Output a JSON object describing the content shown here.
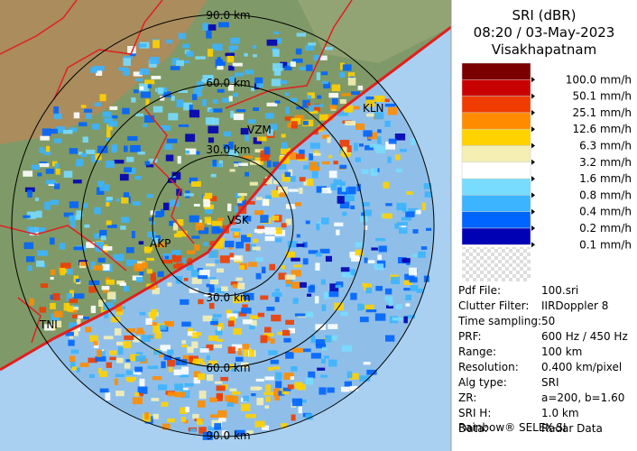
{
  "header": {
    "title": "SRI (dBR)",
    "datetime": "08:20 / 03-May-2023",
    "station": "Visakhapatnam"
  },
  "legend": [
    {
      "label": "100.0 mm/h",
      "color": "#7a0000"
    },
    {
      "label": "50.1 mm/h",
      "color": "#c80000"
    },
    {
      "label": "25.1 mm/h",
      "color": "#f03c00"
    },
    {
      "label": "12.6 mm/h",
      "color": "#ff8c00"
    },
    {
      "label": "6.3 mm/h",
      "color": "#ffd200"
    },
    {
      "label": "3.2 mm/h",
      "color": "#f5efb4"
    },
    {
      "label": "1.6 mm/h",
      "color": "#ffffff"
    },
    {
      "label": "0.8 mm/h",
      "color": "#78dcff"
    },
    {
      "label": "0.4 mm/h",
      "color": "#3cb4ff"
    },
    {
      "label": "0.2 mm/h",
      "color": "#0064ff"
    },
    {
      "label": "0.1 mm/h",
      "color": "#0000b4"
    }
  ],
  "range_labels_top": [
    "30.0 km",
    "60.0 km",
    "90.0 km"
  ],
  "range_labels_bottom": [
    "30.0 km",
    "60.0 km",
    "90.0 km"
  ],
  "places": [
    "VZM",
    "KLN",
    "VSK",
    "AKP",
    "TNI"
  ],
  "info": [
    [
      "Pdf File:",
      "100.sri"
    ],
    [
      "Clutter Filter:",
      "IIRDoppler 8"
    ],
    [
      "Time sampling:",
      "50"
    ],
    [
      "PRF:",
      "600 Hz / 450 Hz"
    ],
    [
      "Range:",
      "100 km"
    ],
    [
      "Resolution:",
      "0.400 km/pixel"
    ],
    [
      "Alg type:",
      "SRI"
    ],
    [
      "ZR:",
      "a=200, b=1.60"
    ],
    [
      "SRI H:",
      "1.0 km"
    ],
    [
      "Data:",
      "Radar Data"
    ]
  ],
  "footer": "Rainbow® SELEX-SI"
}
